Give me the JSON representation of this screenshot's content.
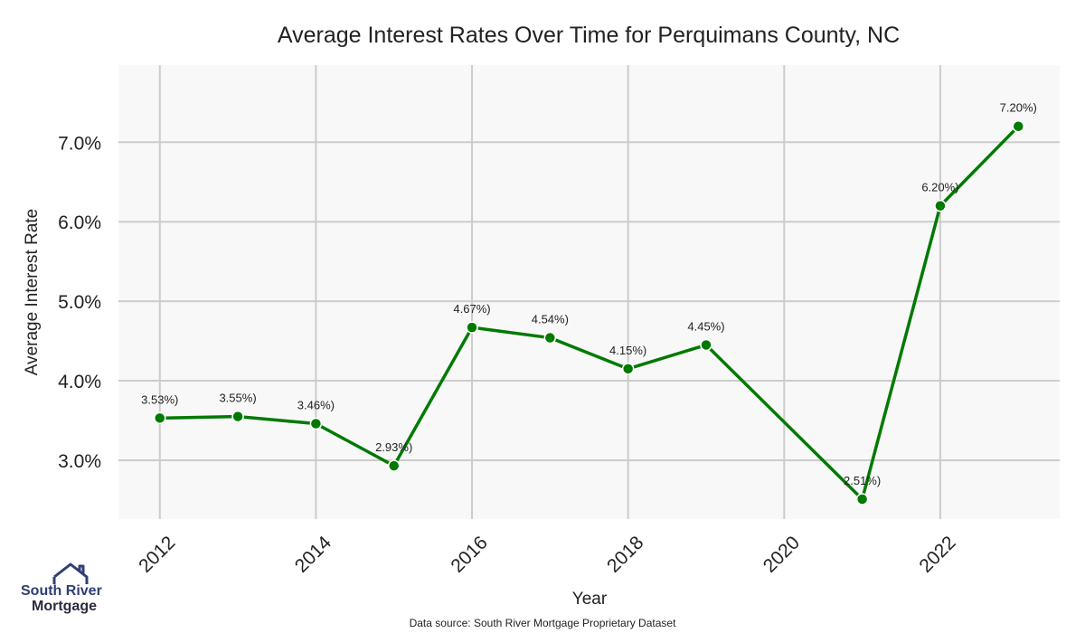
{
  "chart_data": {
    "type": "line",
    "title": "Average Interest Rates Over Time for Perquimans County, NC",
    "xlabel": "Year",
    "ylabel": "Average Interest Rate",
    "x": [
      2012,
      2013,
      2014,
      2015,
      2016,
      2017,
      2018,
      2019,
      2021,
      2022,
      2023
    ],
    "series": [
      {
        "values": [
          3.53,
          3.55,
          3.46,
          2.93,
          4.67,
          4.54,
          4.15,
          4.45,
          2.51,
          6.2,
          7.2
        ],
        "labels": [
          "3.53%)",
          "3.55%)",
          "3.46%)",
          "2.93%)",
          "4.67%)",
          "4.54%)",
          "4.15%)",
          "4.45%)",
          "2.51%)",
          "6.20%)",
          "7.20%)"
        ]
      }
    ],
    "xlim": [
      2011.47,
      2023.53
    ],
    "ylim": [
      2.26,
      7.97
    ],
    "x_ticks": [
      2012,
      2014,
      2016,
      2018,
      2020,
      2022
    ],
    "x_tick_labels": [
      "2012",
      "2014",
      "2016",
      "2018",
      "2020",
      "2022"
    ],
    "y_ticks": [
      3.0,
      4.0,
      5.0,
      6.0,
      7.0
    ],
    "y_tick_labels": [
      "3.0%",
      "4.0%",
      "5.0%",
      "6.0%",
      "7.0%"
    ],
    "grid": true,
    "line_color": "#007a00",
    "plot_background": "#f8f8f8",
    "grid_color": "#cccccc"
  },
  "footer": {
    "source": "Data source: South River Mortgage Proprietary Dataset"
  },
  "logo": {
    "line1": "South River",
    "line2": "Mortgage",
    "icon": "house-outline-icon",
    "color": "#2f3f73"
  }
}
